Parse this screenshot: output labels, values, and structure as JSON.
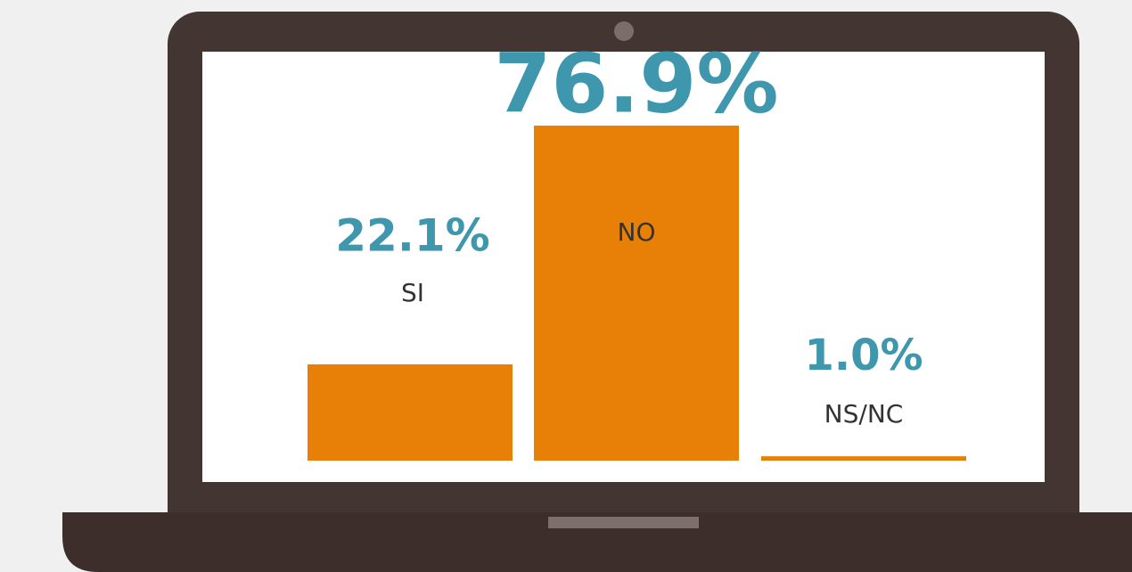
{
  "chart_data": {
    "type": "bar",
    "categories": [
      "SI",
      "NO",
      "NS/NC"
    ],
    "values": [
      22.1,
      76.9,
      1.0
    ],
    "value_labels": [
      "22.1%",
      "76.9%",
      "1.0%"
    ],
    "color": "#e88007"
  }
}
